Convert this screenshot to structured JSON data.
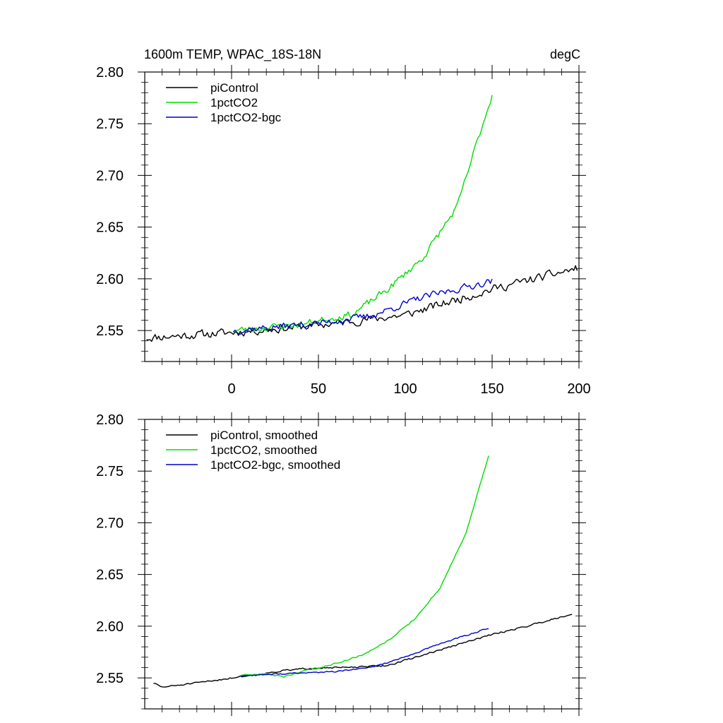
{
  "header": {
    "left_title": "1600m TEMP, WPAC_18S-18N",
    "right_title": "degC"
  },
  "colors": {
    "piControl": "#000000",
    "1pctCO2": "#00dd00",
    "1pctCO2-bgc": "#0000cc"
  },
  "chart_data": [
    {
      "type": "line",
      "panel": "top",
      "xlim": [
        -50,
        200
      ],
      "ylim": [
        2.52,
        2.8
      ],
      "xticks": [
        0,
        50,
        100,
        150,
        200
      ],
      "xtick_labels": [
        "0",
        "50",
        "100",
        "150",
        "200"
      ],
      "yticks": [
        2.55,
        2.6,
        2.65,
        2.7,
        2.75,
        2.8
      ],
      "ytick_labels": [
        "2.55",
        "2.60",
        "2.65",
        "2.70",
        "2.75",
        "2.80"
      ],
      "legend_position": "top-left",
      "series": [
        {
          "name": "piControl",
          "color": "#000000",
          "noise": 0.006,
          "seed": 11,
          "x_range": [
            -49,
            199
          ],
          "trend": [
            [
              -49,
              2.543
            ],
            [
              0,
              2.548
            ],
            [
              50,
              2.555
            ],
            [
              100,
              2.565
            ],
            [
              150,
              2.59
            ],
            [
              199,
              2.61
            ]
          ]
        },
        {
          "name": "1pctCO2",
          "color": "#00dd00",
          "noise": 0.005,
          "seed": 23,
          "x_range": [
            1,
            150
          ],
          "trend": [
            [
              1,
              2.55
            ],
            [
              40,
              2.556
            ],
            [
              70,
              2.566
            ],
            [
              90,
              2.59
            ],
            [
              110,
              2.62
            ],
            [
              130,
              2.67
            ],
            [
              140,
              2.725
            ],
            [
              150,
              2.778
            ]
          ]
        },
        {
          "name": "1pctCO2-bgc",
          "color": "#0000cc",
          "noise": 0.005,
          "seed": 37,
          "x_range": [
            1,
            150
          ],
          "trend": [
            [
              1,
              2.55
            ],
            [
              50,
              2.557
            ],
            [
              80,
              2.564
            ],
            [
              110,
              2.582
            ],
            [
              150,
              2.598
            ]
          ]
        }
      ]
    },
    {
      "type": "line",
      "panel": "bottom",
      "xlim": [
        -50,
        200
      ],
      "ylim": [
        2.52,
        2.8
      ],
      "xticks": [
        0,
        50,
        100,
        150,
        200
      ],
      "yticks": [
        2.55,
        2.6,
        2.65,
        2.7,
        2.75,
        2.8
      ],
      "ytick_labels": [
        "2.55",
        "2.60",
        "2.65",
        "2.70",
        "2.75",
        "2.80"
      ],
      "legend_position": "top-left",
      "series": [
        {
          "name": "piControl, smoothed",
          "color": "#000000",
          "noise": 0.0012,
          "seed": 51,
          "x_range": [
            -45,
            196
          ],
          "trend": [
            [
              -45,
              2.545
            ],
            [
              -40,
              2.541
            ],
            [
              -20,
              2.545
            ],
            [
              0,
              2.55
            ],
            [
              30,
              2.557
            ],
            [
              50,
              2.56
            ],
            [
              70,
              2.56
            ],
            [
              90,
              2.562
            ],
            [
              110,
              2.572
            ],
            [
              130,
              2.582
            ],
            [
              150,
              2.592
            ],
            [
              170,
              2.6
            ],
            [
              196,
              2.612
            ]
          ]
        },
        {
          "name": "1pctCO2, smoothed",
          "color": "#00dd00",
          "noise": 0.001,
          "seed": 63,
          "x_range": [
            5,
            148
          ],
          "trend": [
            [
              5,
              2.552
            ],
            [
              20,
              2.554
            ],
            [
              30,
              2.551
            ],
            [
              40,
              2.556
            ],
            [
              60,
              2.564
            ],
            [
              75,
              2.572
            ],
            [
              90,
              2.586
            ],
            [
              105,
              2.606
            ],
            [
              120,
              2.637
            ],
            [
              135,
              2.69
            ],
            [
              148,
              2.765
            ]
          ]
        },
        {
          "name": "1pctCO2-bgc, smoothed",
          "color": "#0000cc",
          "noise": 0.001,
          "seed": 77,
          "x_range": [
            5,
            148
          ],
          "trend": [
            [
              5,
              2.552
            ],
            [
              30,
              2.554
            ],
            [
              60,
              2.556
            ],
            [
              80,
              2.56
            ],
            [
              100,
              2.57
            ],
            [
              120,
              2.583
            ],
            [
              148,
              2.598
            ]
          ]
        }
      ]
    }
  ]
}
